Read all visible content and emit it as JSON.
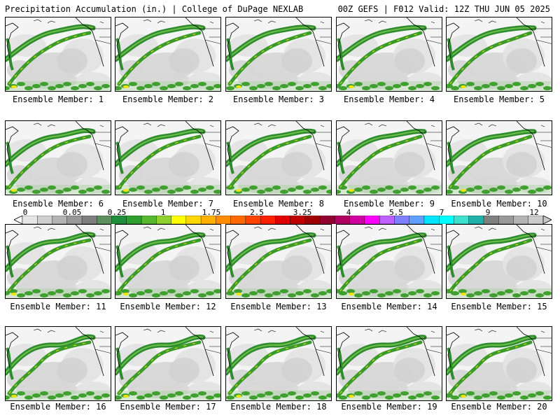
{
  "header": {
    "left": "Precipitation Accumulation (in.) | College of DuPage NEXLAB",
    "right": "00Z GEFS | F012 Valid: 12Z THU JUN 05 2025"
  },
  "panels": [
    {
      "label": "Ensemble Member: 1"
    },
    {
      "label": "Ensemble Member: 2"
    },
    {
      "label": "Ensemble Member: 3"
    },
    {
      "label": "Ensemble Member: 4"
    },
    {
      "label": "Ensemble Member: 5"
    },
    {
      "label": "Ensemble Member: 6"
    },
    {
      "label": "Ensemble Member: 7"
    },
    {
      "label": "Ensemble Member: 8"
    },
    {
      "label": "Ensemble Member: 9"
    },
    {
      "label": "Ensemble Member: 10"
    },
    {
      "label": "Ensemble Member: 11"
    },
    {
      "label": "Ensemble Member: 12"
    },
    {
      "label": "Ensemble Member: 13"
    },
    {
      "label": "Ensemble Member: 14"
    },
    {
      "label": "Ensemble Member: 15"
    },
    {
      "label": "Ensemble Member: 16"
    },
    {
      "label": "Ensemble Member: 17"
    },
    {
      "label": "Ensemble Member: 18"
    },
    {
      "label": "Ensemble Member: 19"
    },
    {
      "label": "Ensemble Member: 20"
    }
  ],
  "colorbar": {
    "labels": [
      "0",
      "0.05",
      "0.25",
      "1",
      "1.75",
      "2.5",
      "3.25",
      "4",
      "5.5",
      "7",
      "9",
      "12"
    ],
    "colors": [
      "#e6e6e6",
      "#cfcfcf",
      "#b3b3b3",
      "#999999",
      "#7f7f7f",
      "#5e8f5e",
      "#1f8f3a",
      "#2f9f2f",
      "#55b82f",
      "#8fd12f",
      "#ffff00",
      "#ffd700",
      "#ffb000",
      "#ff8c00",
      "#ff6a00",
      "#ff4500",
      "#ff2000",
      "#e00000",
      "#c00000",
      "#a00000",
      "#900030",
      "#b00060",
      "#d000a0",
      "#ff00ff",
      "#c060ff",
      "#8080ff",
      "#5fa0ff",
      "#00e5ff",
      "#00ffff",
      "#40e0d0",
      "#20b2aa",
      "#808080",
      "#999999",
      "#b3b3b3",
      "#cccccc"
    ]
  },
  "colors": {
    "background": "#ffffff",
    "light_gray": "#e2e2e2",
    "mid_gray": "#c4c4c4",
    "precip_dark_green": "#2e8b2e",
    "precip_green": "#4caf27",
    "precip_yellow": "#f0e40c",
    "border": "#000000"
  }
}
